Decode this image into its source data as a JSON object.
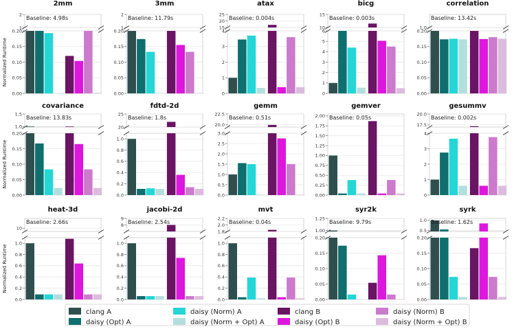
{
  "chart_data": {
    "type": "bar",
    "layout": "small-multiples-broken-axis",
    "series": [
      {
        "name": "clang A",
        "color": "#2f4f4f"
      },
      {
        "name": "daisy (Opt) A",
        "color": "#0f6e6e"
      },
      {
        "name": "daisy (Norm) A",
        "color": "#24d6d6"
      },
      {
        "name": "daisy (Norm + Opt) A",
        "color": "#b3dede"
      },
      {
        "name": "clang B",
        "color": "#6a1464"
      },
      {
        "name": "daisy (Opt) B",
        "color": "#dd17dd"
      },
      {
        "name": "daisy (Norm) B",
        "color": "#cc7acc"
      },
      {
        "name": "daisy (Norm + Opt) B",
        "color": "#dcbcdc"
      }
    ],
    "ylabel": "Normalized Runtime",
    "panels": [
      {
        "title": "2mm",
        "baseline": "Baseline: 4.98s",
        "top": {
          "ylim": [
            1,
            2
          ],
          "ticks": [
            "1",
            "2"
          ]
        },
        "bottom": {
          "ylim": [
            0,
            0.2
          ],
          "ticks": [
            "0.00",
            "0.05",
            "0.10",
            "0.15",
            "0.20"
          ]
        },
        "values": [
          1.0,
          0.2,
          0.193,
          0.001,
          0.12,
          0.104,
          0.2,
          0.002
        ]
      },
      {
        "title": "3mm",
        "baseline": "Baseline: 11.79s",
        "top": {
          "ylim": [
            1,
            2
          ],
          "ticks": [
            "1",
            "2"
          ]
        },
        "bottom": {
          "ylim": [
            0,
            0.2
          ],
          "ticks": [
            "0.00",
            "0.05",
            "0.10",
            "0.15",
            "0.20"
          ]
        },
        "values": [
          1.0,
          0.174,
          0.133,
          0.001,
          1.0,
          0.155,
          0.133,
          0.001
        ]
      },
      {
        "title": "atax",
        "baseline": "Baseline: 0.004s",
        "top": {
          "ylim": [
            15,
            25
          ],
          "ticks": [
            "15",
            "20",
            "25"
          ]
        },
        "bottom": {
          "ylim": [
            0,
            4
          ],
          "ticks": [
            "0",
            "1",
            "2",
            "3",
            "4"
          ]
        },
        "values": [
          1.0,
          3.45,
          3.7,
          0.35,
          17.0,
          0.4,
          3.6,
          0.4
        ]
      },
      {
        "title": "bicg",
        "baseline": "Baseline: 0.003s",
        "top": {
          "ylim": [
            10,
            15
          ],
          "ticks": [
            "10",
            "15"
          ]
        },
        "bottom": {
          "ylim": [
            0,
            6
          ],
          "ticks": [
            "0",
            "1",
            "2",
            "3",
            "4",
            "5",
            "6"
          ]
        },
        "values": [
          1.0,
          6.0,
          4.4,
          0.55,
          11.5,
          5.05,
          4.5,
          0.5
        ]
      },
      {
        "title": "correlation",
        "baseline": "Baseline: 13.42s",
        "top": {
          "ylim": [
            1.0,
            1.03
          ],
          "ticks": [
            "1.0"
          ]
        },
        "bottom": {
          "ylim": [
            0,
            0.2
          ],
          "ticks": [
            "0.00",
            "0.05",
            "0.10",
            "0.15",
            "0.20"
          ]
        },
        "values": [
          1.0,
          0.173,
          0.175,
          0.173,
          1.0,
          0.174,
          0.18,
          0.175
        ]
      },
      {
        "title": "covariance",
        "baseline": "Baseline: 13.83s",
        "top": {
          "ylim": [
            0.98,
            1.5
          ],
          "ticks": [
            "1.0",
            "1.5"
          ]
        },
        "bottom": {
          "ylim": [
            0,
            0.2
          ],
          "ticks": [
            "0.00",
            "0.05",
            "0.10",
            "0.15",
            "0.20"
          ]
        },
        "values": [
          1.0,
          0.167,
          0.083,
          0.023,
          1.0,
          0.165,
          0.083,
          0.023
        ]
      },
      {
        "title": "fdtd-2d",
        "baseline": "Baseline: 1.8s",
        "top": {
          "ylim": [
            20,
            25
          ],
          "ticks": [
            "20",
            "25"
          ]
        },
        "bottom": {
          "ylim": [
            0,
            1.1
          ],
          "ticks": [
            "0.0",
            "0.2",
            "0.4",
            "0.6",
            "0.8",
            "1.0"
          ]
        },
        "values": [
          1.0,
          0.11,
          0.12,
          0.11,
          22.0,
          0.36,
          0.14,
          0.11
        ]
      },
      {
        "title": "gemm",
        "baseline": "Baseline: 0.51s",
        "top": {
          "ylim": [
            19.5,
            22.5
          ],
          "ticks": [
            "20.0",
            "22.5"
          ]
        },
        "bottom": {
          "ylim": [
            0,
            3
          ],
          "ticks": [
            "0.0",
            "0.5",
            "1.0",
            "1.5",
            "2.0",
            "2.5",
            "3.0"
          ]
        },
        "values": [
          1.0,
          1.55,
          1.5,
          0.02,
          20.0,
          2.75,
          1.5,
          0.02
        ]
      },
      {
        "title": "gemver",
        "baseline": "Baseline: 0.05s",
        "top": {
          "ylim": [
            0,
            2.05
          ],
          "ticks": [
            "0.00",
            "0.25",
            "0.50",
            "0.75",
            "1.00",
            "1.25",
            "1.50",
            "1.75",
            "2.00"
          ]
        },
        "bottom": null,
        "values": [
          1.0,
          0.04,
          0.38,
          0.04,
          1.87,
          0.04,
          0.38,
          0.04
        ]
      },
      {
        "title": "gesummv",
        "baseline": "Baseline: 0.002s",
        "top": {
          "ylim": [
            17,
            20
          ],
          "ticks": [
            "17.5",
            "20.0"
          ]
        },
        "bottom": {
          "ylim": [
            0,
            4
          ],
          "ticks": [
            "0",
            "1",
            "2",
            "3",
            "4"
          ]
        },
        "values": [
          1.0,
          2.75,
          3.65,
          0.6,
          17.2,
          0.6,
          3.75,
          0.6
        ]
      },
      {
        "title": "heat-3d",
        "baseline": "Baseline: 2.66s",
        "top": {
          "ylim": [
            9,
            13
          ],
          "ticks": [
            "10"
          ]
        },
        "bottom": {
          "ylim": [
            0,
            1.1
          ],
          "ticks": [
            "0.0",
            "0.2",
            "0.4",
            "0.6",
            "0.8",
            "1.0"
          ]
        },
        "values": [
          1.0,
          0.09,
          0.09,
          0.09,
          1.08,
          0.64,
          0.09,
          0.09
        ]
      },
      {
        "title": "jacobi-2d",
        "baseline": "Baseline: 2.54s",
        "top": {
          "ylim": [
            7,
            9
          ],
          "ticks": [
            "8",
            "9"
          ]
        },
        "bottom": {
          "ylim": [
            0,
            1.1
          ],
          "ticks": [
            "0.0",
            "0.2",
            "0.4",
            "0.6",
            "0.8",
            "1.0"
          ]
        },
        "values": [
          1.0,
          0.06,
          0.06,
          0.06,
          8.0,
          0.74,
          0.06,
          0.06
        ]
      },
      {
        "title": "mvt",
        "baseline": "Baseline: 0.04s",
        "top": {
          "ylim": [
            1.8,
            2.2
          ],
          "ticks": [
            "1.8",
            "2.0",
            "2.2"
          ]
        },
        "bottom": {
          "ylim": [
            0,
            1.1
          ],
          "ticks": [
            "0.0",
            "0.2",
            "0.4",
            "0.6",
            "0.8",
            "1.0"
          ]
        },
        "values": [
          1.0,
          0.04,
          0.39,
          0.02,
          1.85,
          0.04,
          0.39,
          0.02
        ]
      },
      {
        "title": "syr2k",
        "baseline": "Baseline: 9.79s",
        "top": {
          "ylim": [
            0.98,
            1.25
          ],
          "ticks": [
            "1.00",
            "1.25"
          ]
        },
        "bottom": {
          "ylim": [
            0,
            0.2
          ],
          "ticks": [
            "0.00",
            "0.05",
            "0.10",
            "0.15",
            "0.20"
          ]
        },
        "values": [
          1.0,
          0.174,
          0.016,
          0.001,
          0.054,
          0.143,
          0.016,
          0.001
        ]
      },
      {
        "title": "syrk",
        "baseline": "Baseline: 1.62s",
        "top": {
          "ylim": [
            0.45,
            1.1
          ],
          "ticks": [
            "0.5",
            "1.0"
          ]
        },
        "bottom": {
          "ylim": [
            0,
            0.2
          ],
          "ticks": [
            "0.00",
            "0.05",
            "0.10",
            "0.15",
            "0.20"
          ]
        },
        "values": [
          1.0,
          0.55,
          0.073,
          0.008,
          0.166,
          0.85,
          0.073,
          0.008
        ]
      }
    ]
  }
}
